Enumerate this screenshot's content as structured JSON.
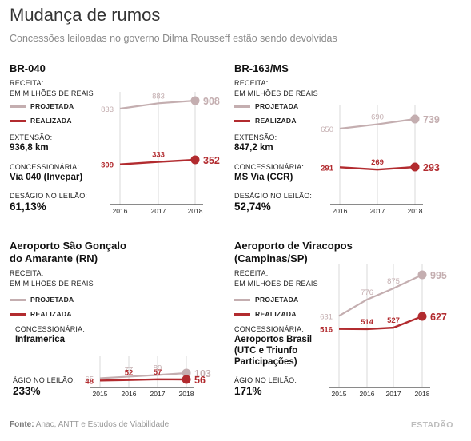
{
  "title": "Mudança de rumos",
  "subtitle": "Concessões leiloadas no governo Dilma Rousseff estão sendo devolvidas",
  "labels": {
    "receita": "RECEITA:",
    "unidade": "EM MILHÕES DE REAIS",
    "projetada": "PROJETADA",
    "realizada": "REALIZADA",
    "extensao": "EXTENSÃO:",
    "concessionaria": "CONCESSIONÁRIA:",
    "desagio": "DESÁGIO NO LEILÃO:",
    "agio": "ÁGIO NO LEILÃO:"
  },
  "colors": {
    "projetada": "#c4aeb0",
    "realizada": "#b22b2f",
    "grid": "#d8d8d8",
    "axis": "#444444"
  },
  "panels": [
    {
      "title_lines": [
        "BR-040"
      ],
      "extensao": "936,8 km",
      "concessionaria_lines": [
        "Via 040 (Invepar)"
      ],
      "leilao_value": "61,13%"
    },
    {
      "title_lines": [
        "BR-163/MS"
      ],
      "extensao": "847,2 km",
      "concessionaria_lines": [
        "MS Via (CCR)"
      ],
      "leilao_value": "52,74%"
    },
    {
      "title_lines": [
        "Aeroporto São Gonçalo",
        "do Amarante (RN)"
      ],
      "concessionaria_lines": [
        "Inframerica"
      ],
      "leilao_value": "233%"
    },
    {
      "title_lines": [
        "Aeroporto de Viracopos",
        "(Campinas/SP)"
      ],
      "concessionaria_lines": [
        "Aeroportos Brasil",
        "(UTC e Triunfo",
        "Participações)"
      ],
      "leilao_value": "171%"
    }
  ],
  "chart_data": [
    {
      "type": "line",
      "title": "BR-040",
      "x": [
        "2016",
        "2017",
        "2018"
      ],
      "ylabel": "EM MILHÕES DE REAIS",
      "ylim": [
        0,
        1000
      ],
      "series": [
        {
          "name": "PROJETADA",
          "values": [
            833,
            883,
            908
          ],
          "labels": [
            "833",
            "883",
            "908"
          ]
        },
        {
          "name": "REALIZADA",
          "values": [
            309,
            333,
            352
          ],
          "labels": [
            "309",
            "333",
            "352"
          ]
        }
      ]
    },
    {
      "type": "line",
      "title": "BR-163/MS",
      "x": [
        "2016",
        "2017",
        "2018"
      ],
      "ylabel": "EM MILHÕES DE REAIS",
      "ylim": [
        0,
        1000
      ],
      "series": [
        {
          "name": "PROJETADA",
          "values": [
            650,
            690,
            739
          ],
          "labels": [
            "650",
            "690",
            "739"
          ]
        },
        {
          "name": "REALIZADA",
          "values": [
            291,
            269,
            293
          ],
          "labels": [
            "291",
            "269",
            "293"
          ]
        }
      ]
    },
    {
      "type": "line",
      "title": "Aeroporto São Gonçalo do Amarante (RN)",
      "x": [
        "2015",
        "2016",
        "2017",
        "2018"
      ],
      "ylabel": "EM MILHÕES DE REAIS",
      "ylim": [
        0,
        1000
      ],
      "series": [
        {
          "name": "PROJETADA",
          "values": [
            65,
            77,
            89,
            103
          ],
          "labels": [
            "65",
            "77",
            "89",
            "103"
          ]
        },
        {
          "name": "REALIZADA",
          "values": [
            48,
            52,
            57,
            56
          ],
          "labels": [
            "48",
            "52",
            "57",
            "56"
          ]
        }
      ]
    },
    {
      "type": "line",
      "title": "Aeroporto de Viracopos (Campinas/SP)",
      "x": [
        "2015",
        "2016",
        "2017",
        "2018"
      ],
      "ylabel": "EM MILHÕES DE REAIS",
      "ylim": [
        0,
        1000
      ],
      "series": [
        {
          "name": "PROJETADA",
          "values": [
            631,
            776,
            875,
            995
          ],
          "labels": [
            "631",
            "776",
            "875",
            "995"
          ]
        },
        {
          "name": "REALIZADA",
          "values": [
            516,
            514,
            527,
            627
          ],
          "labels": [
            "516",
            "514",
            "527",
            "627"
          ]
        }
      ]
    }
  ],
  "footer": {
    "label": "Fonte:",
    "text": "Anac, ANTT e Estudos de Viabilidade"
  },
  "brand": "ESTADÃO"
}
